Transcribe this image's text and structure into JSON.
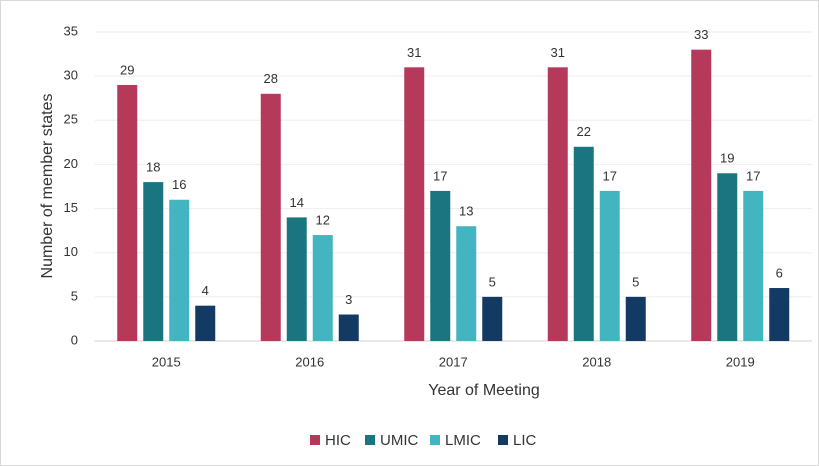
{
  "chart_data": {
    "type": "bar",
    "categories": [
      "2015",
      "2016",
      "2017",
      "2018",
      "2019"
    ],
    "series": [
      {
        "name": "HIC",
        "color": "#b5395a",
        "values": [
          29,
          28,
          31,
          31,
          33
        ]
      },
      {
        "name": "UMIC",
        "color": "#1b7580",
        "values": [
          18,
          14,
          17,
          22,
          19
        ]
      },
      {
        "name": "LMIC",
        "color": "#43b5c1",
        "values": [
          16,
          12,
          13,
          17,
          17
        ]
      },
      {
        "name": "LIC",
        "color": "#123a63",
        "values": [
          4,
          3,
          5,
          5,
          6
        ]
      }
    ],
    "xlabel": "Year of Meeting",
    "ylabel": "Number of member states",
    "ylim": [
      0,
      35
    ],
    "yticks": [
      0,
      5,
      10,
      15,
      20,
      25,
      30,
      35
    ],
    "grid": true,
    "legend": "bottom"
  }
}
